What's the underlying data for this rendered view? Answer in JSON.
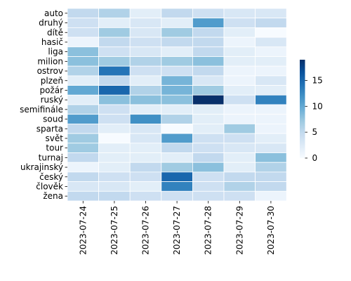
{
  "chart_data": {
    "type": "heatmap",
    "title": "",
    "xlabel": "",
    "ylabel": "",
    "x_categories": [
      "2023-07-24",
      "2023-07-25",
      "2023-07-26",
      "2023-07-27",
      "2023-07-28",
      "2023-07-29",
      "2023-07-30"
    ],
    "y_categories": [
      "auto",
      "druhý",
      "dítě",
      "hasič",
      "liga",
      "milion",
      "ostrov",
      "plzeň",
      "požár",
      "ruský",
      "semifinále",
      "soud",
      "sparta",
      "svět",
      "tour",
      "turnaj",
      "ukrajinský",
      "český",
      "člověk",
      "žena"
    ],
    "values": [
      [
        5,
        6,
        2,
        5,
        4,
        3,
        3
      ],
      [
        4,
        2,
        3,
        2,
        11,
        4,
        5
      ],
      [
        4,
        7,
        3,
        7,
        5,
        2,
        0
      ],
      [
        1,
        5,
        4,
        5,
        5,
        1,
        3
      ],
      [
        8,
        4,
        3,
        2,
        5,
        2,
        1
      ],
      [
        8,
        7,
        6,
        7,
        8,
        2,
        2
      ],
      [
        6,
        14,
        4,
        4,
        5,
        1,
        1
      ],
      [
        2,
        5,
        2,
        9,
        3,
        1,
        3
      ],
      [
        10,
        15,
        6,
        9,
        7,
        2,
        2
      ],
      [
        2,
        8,
        8,
        8,
        19,
        4,
        13
      ],
      [
        6,
        4,
        2,
        2,
        2,
        1,
        1
      ],
      [
        11,
        4,
        12,
        6,
        2,
        1,
        1
      ],
      [
        5,
        2,
        3,
        0,
        2,
        7,
        1
      ],
      [
        7,
        0,
        3,
        11,
        4,
        4,
        2
      ],
      [
        7,
        2,
        2,
        5,
        4,
        3,
        3
      ],
      [
        5,
        2,
        2,
        2,
        5,
        2,
        8
      ],
      [
        1,
        2,
        5,
        7,
        8,
        2,
        6
      ],
      [
        5,
        4,
        4,
        15,
        4,
        5,
        5
      ],
      [
        3,
        3,
        2,
        13,
        4,
        6,
        5
      ],
      [
        5,
        5,
        4,
        4,
        4,
        4,
        1
      ]
    ],
    "colorbar": {
      "min": 0,
      "max": 19,
      "ticks": [
        0,
        5,
        10,
        15
      ]
    },
    "colormap": "Blues",
    "grid": false
  },
  "colors": {
    "cell_border": "#ffffff",
    "low": "#f7fbff",
    "high": "#08306b"
  }
}
